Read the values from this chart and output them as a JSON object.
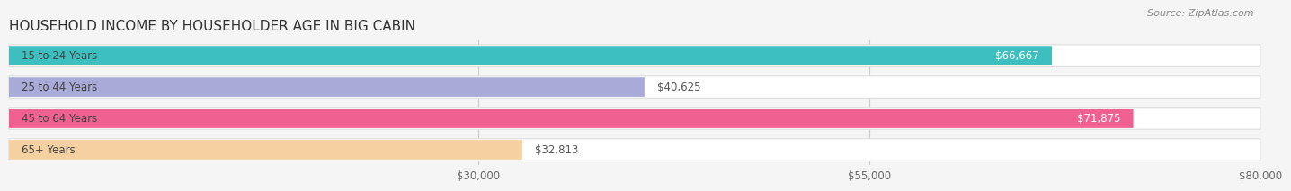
{
  "title": "HOUSEHOLD INCOME BY HOUSEHOLDER AGE IN BIG CABIN",
  "source": "Source: ZipAtlas.com",
  "categories": [
    "15 to 24 Years",
    "25 to 44 Years",
    "45 to 64 Years",
    "65+ Years"
  ],
  "values": [
    66667,
    40625,
    71875,
    32813
  ],
  "bar_colors": [
    "#3dbfbf",
    "#a8aad8",
    "#f06090",
    "#f5d0a0"
  ],
  "bar_labels": [
    "$66,667",
    "$40,625",
    "$71,875",
    "$32,813"
  ],
  "label_colors": [
    "#ffffff",
    "#555555",
    "#ffffff",
    "#555555"
  ],
  "label_inside": [
    true,
    false,
    true,
    false
  ],
  "xmin": 0,
  "xmax": 80000,
  "xticks": [
    30000,
    55000,
    80000
  ],
  "xtick_labels": [
    "$30,000",
    "$55,000",
    "$80,000"
  ],
  "bar_height": 0.62,
  "bg_color": "#f5f5f5",
  "bar_bg_color": "#e8e8e8",
  "bar_row_bg": "#ffffff",
  "title_fontsize": 11,
  "label_fontsize": 8.5,
  "source_fontsize": 8,
  "cat_label_fontsize": 8.5
}
